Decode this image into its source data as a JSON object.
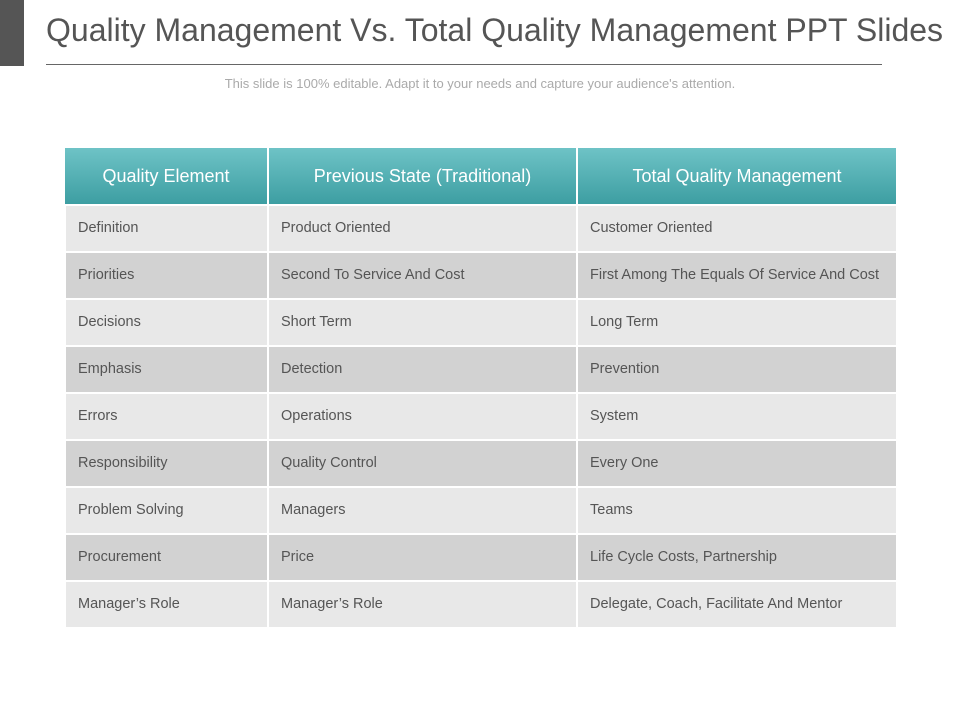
{
  "header": {
    "title": "Quality Management Vs. Total Quality Management PPT Slides",
    "subtitle": "This slide is 100% editable. Adapt it to your needs and capture your audience's attention."
  },
  "table": {
    "columns": [
      "Quality Element",
      "Previous State (Traditional)",
      "Total Quality Management"
    ],
    "rows": [
      [
        "Definition",
        "Product Oriented",
        "Customer Oriented"
      ],
      [
        "Priorities",
        "Second To Service And Cost",
        "First Among The Equals Of Service And Cost"
      ],
      [
        "Decisions",
        "Short Term",
        "Long Term"
      ],
      [
        "Emphasis",
        "Detection",
        "Prevention"
      ],
      [
        "Errors",
        "Operations",
        "System"
      ],
      [
        "Responsibility",
        "Quality Control",
        "Every One"
      ],
      [
        "Problem Solving",
        "Managers",
        "Teams"
      ],
      [
        "Procurement",
        "Price",
        "Life Cycle Costs, Partnership"
      ],
      [
        "Manager’s Role",
        "Manager’s Role",
        "Delegate, Coach, Facilitate And Mentor"
      ]
    ]
  }
}
